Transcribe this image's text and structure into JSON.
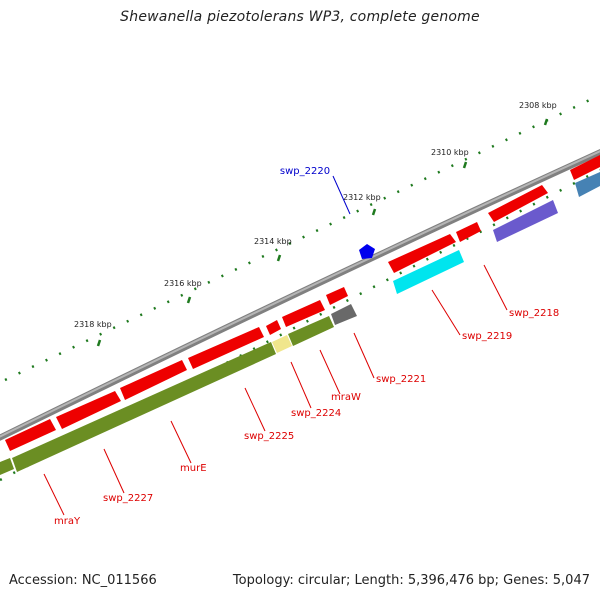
{
  "title": "Shewanella piezotolerans WP3, complete genome",
  "footer": {
    "accession": "Accession: NC_011566",
    "summary": "Topology: circular; Length: 5,396,476 bp; Genes: 5,047"
  },
  "colors": {
    "backbone": "#7d7d7d",
    "scale_ticks": "#1f7a1f",
    "label_red": "#dd0000",
    "label_blue": "#0000cc",
    "red_gene": "#ee0000",
    "olive_gene": "#6b8e23",
    "pale_yellow_gene": "#f0e68c",
    "gray_gene": "#696969",
    "cyan_gene": "#00e5ee",
    "slate_gene": "#6a5acd",
    "steel_gene": "#4682b4",
    "blue_marker": "#0000ee"
  },
  "scale_labels": [
    "2308 kbp",
    "2310 kbp",
    "2312 kbp",
    "2314 kbp",
    "2316 kbp",
    "2318 kbp"
  ],
  "gene_labels": [
    "swp_2220",
    "swp_2218",
    "swp_2219",
    "swp_2221",
    "mraW",
    "swp_2224",
    "swp_2225",
    "murE",
    "swp_2227",
    "mraY"
  ]
}
